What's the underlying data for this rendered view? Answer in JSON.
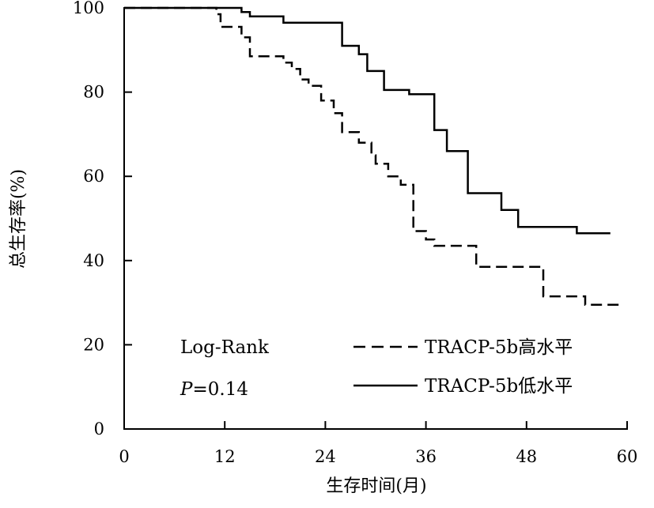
{
  "chart_data": {
    "type": "line",
    "subtype": "kaplan-meier",
    "title": "",
    "xlabel": "生存时间(月)",
    "ylabel": "总生存率(%)",
    "xlim": [
      0,
      60
    ],
    "ylim": [
      0,
      100
    ],
    "xticks": [
      0,
      12,
      24,
      36,
      48,
      60
    ],
    "yticks": [
      0,
      20,
      40,
      60,
      80,
      100
    ],
    "grid": false,
    "legend_position": "bottom-right",
    "annotations": {
      "test": "Log-Rank",
      "p_label": "P",
      "p_value": "=0.14"
    },
    "series": [
      {
        "name": "TRACP-5b高水平",
        "style": "dashed",
        "color": "#000000",
        "points": [
          [
            0,
            100
          ],
          [
            11,
            100
          ],
          [
            11,
            98.5
          ],
          [
            11.5,
            98.5
          ],
          [
            11.5,
            95.5
          ],
          [
            14,
            95.5
          ],
          [
            14,
            93
          ],
          [
            15,
            93
          ],
          [
            15,
            88.5
          ],
          [
            19,
            88.5
          ],
          [
            19,
            87
          ],
          [
            20,
            87
          ],
          [
            20,
            85.5
          ],
          [
            21,
            85.5
          ],
          [
            21,
            83
          ],
          [
            22,
            83
          ],
          [
            22,
            81.5
          ],
          [
            23.5,
            81.5
          ],
          [
            23.5,
            78
          ],
          [
            25,
            78
          ],
          [
            25,
            75
          ],
          [
            26,
            75
          ],
          [
            26,
            70.5
          ],
          [
            28,
            70.5
          ],
          [
            28,
            68
          ],
          [
            29.5,
            68
          ],
          [
            29.5,
            65
          ],
          [
            30,
            65
          ],
          [
            30,
            63
          ],
          [
            31.5,
            63
          ],
          [
            31.5,
            60
          ],
          [
            33,
            60
          ],
          [
            33,
            58
          ],
          [
            34.5,
            58
          ],
          [
            34.5,
            47
          ],
          [
            36,
            47
          ],
          [
            36,
            45
          ],
          [
            37,
            45
          ],
          [
            37,
            43.5
          ],
          [
            42,
            43.5
          ],
          [
            42,
            38.5
          ],
          [
            50,
            38.5
          ],
          [
            50,
            31.5
          ],
          [
            55,
            31.5
          ],
          [
            55,
            29.5
          ],
          [
            59,
            29.5
          ]
        ]
      },
      {
        "name": "TRACP-5b低水平",
        "style": "solid",
        "color": "#000000",
        "points": [
          [
            0,
            100
          ],
          [
            14,
            100
          ],
          [
            14,
            99
          ],
          [
            15,
            99
          ],
          [
            15,
            98
          ],
          [
            19,
            98
          ],
          [
            19,
            96.5
          ],
          [
            26,
            96.5
          ],
          [
            26,
            91
          ],
          [
            28,
            91
          ],
          [
            28,
            89
          ],
          [
            29,
            89
          ],
          [
            29,
            85
          ],
          [
            31,
            85
          ],
          [
            31,
            80.5
          ],
          [
            34,
            80.5
          ],
          [
            34,
            79.5
          ],
          [
            37,
            79.5
          ],
          [
            37,
            71
          ],
          [
            38.5,
            71
          ],
          [
            38.5,
            66
          ],
          [
            41,
            66
          ],
          [
            41,
            56
          ],
          [
            45,
            56
          ],
          [
            45,
            52
          ],
          [
            47,
            52
          ],
          [
            47,
            48
          ],
          [
            54,
            48
          ],
          [
            54,
            46.5
          ],
          [
            58,
            46.5
          ]
        ]
      }
    ]
  }
}
